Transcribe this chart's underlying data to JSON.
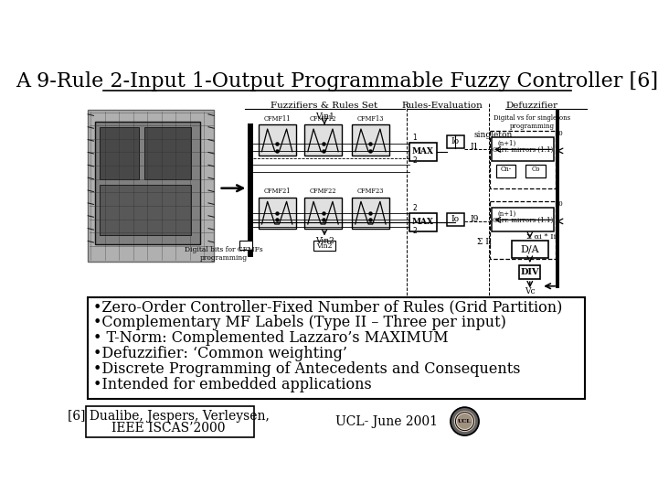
{
  "title": "A 9-Rule 2-Input 1-Output Programmable Fuzzy Controller [6]",
  "title_fontsize": 16,
  "background_color": "#ffffff",
  "bullet_points": [
    "•Zero-Order Controller-Fixed Number of Rules (Grid Partition)",
    "•Complementary MF Labels (Type II – Three per input)",
    "• T-Norm: Complemented Lazzaro’s MAXIMUM",
    "•Defuzzifier: ‘Common weighting’",
    "•Discrete Programming of Antecedents and Consequents",
    "•Intended for embedded applications"
  ],
  "bullet_fontsize": 11.5,
  "ref_left_line1": "[6] Dualibe, Jespers, Verleysen,",
  "ref_left_line2": "IEEE ISCAS’2000",
  "ref_right": "UCL- June 2001",
  "ref_fontsize": 10,
  "text_color": "#000000"
}
